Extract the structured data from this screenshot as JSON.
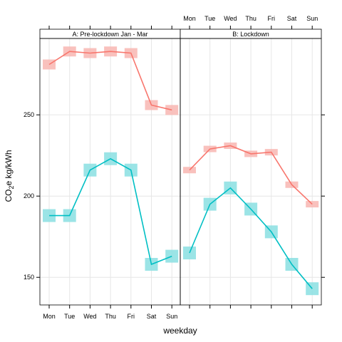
{
  "chart_data": {
    "type": "line",
    "xlabel": "weekday",
    "ylabel_main": "CO",
    "ylabel_sub": "2",
    "ylabel_rest": "e kg/kWh",
    "ylim": [
      133,
      297
    ],
    "yticks": [
      150,
      200,
      250
    ],
    "grid": true,
    "categories": [
      "Mon",
      "Tue",
      "Wed",
      "Thu",
      "Fri",
      "Sat",
      "Sun"
    ],
    "colors": {
      "upper": "#F8766D",
      "lower": "#00BFC4",
      "upper_band": "#F8B6B2",
      "lower_band": "#8ADFE2"
    },
    "panels": [
      {
        "strip": "A: Pre-lockdown Jan - Mar",
        "series": [
          {
            "key": "upper",
            "values": [
              281,
              289,
              288,
              289,
              288,
              256,
              253
            ]
          },
          {
            "key": "lower",
            "values": [
              188,
              188,
              216,
              223,
              216,
              158,
              163
            ]
          }
        ]
      },
      {
        "strip": "B: Lockdown",
        "series": [
          {
            "key": "upper",
            "values": [
              216,
              229,
              231,
              226,
              227,
              207,
              195
            ]
          },
          {
            "key": "lower",
            "values": [
              165,
              195,
              205,
              192,
              178,
              158,
              143
            ]
          }
        ]
      }
    ]
  }
}
